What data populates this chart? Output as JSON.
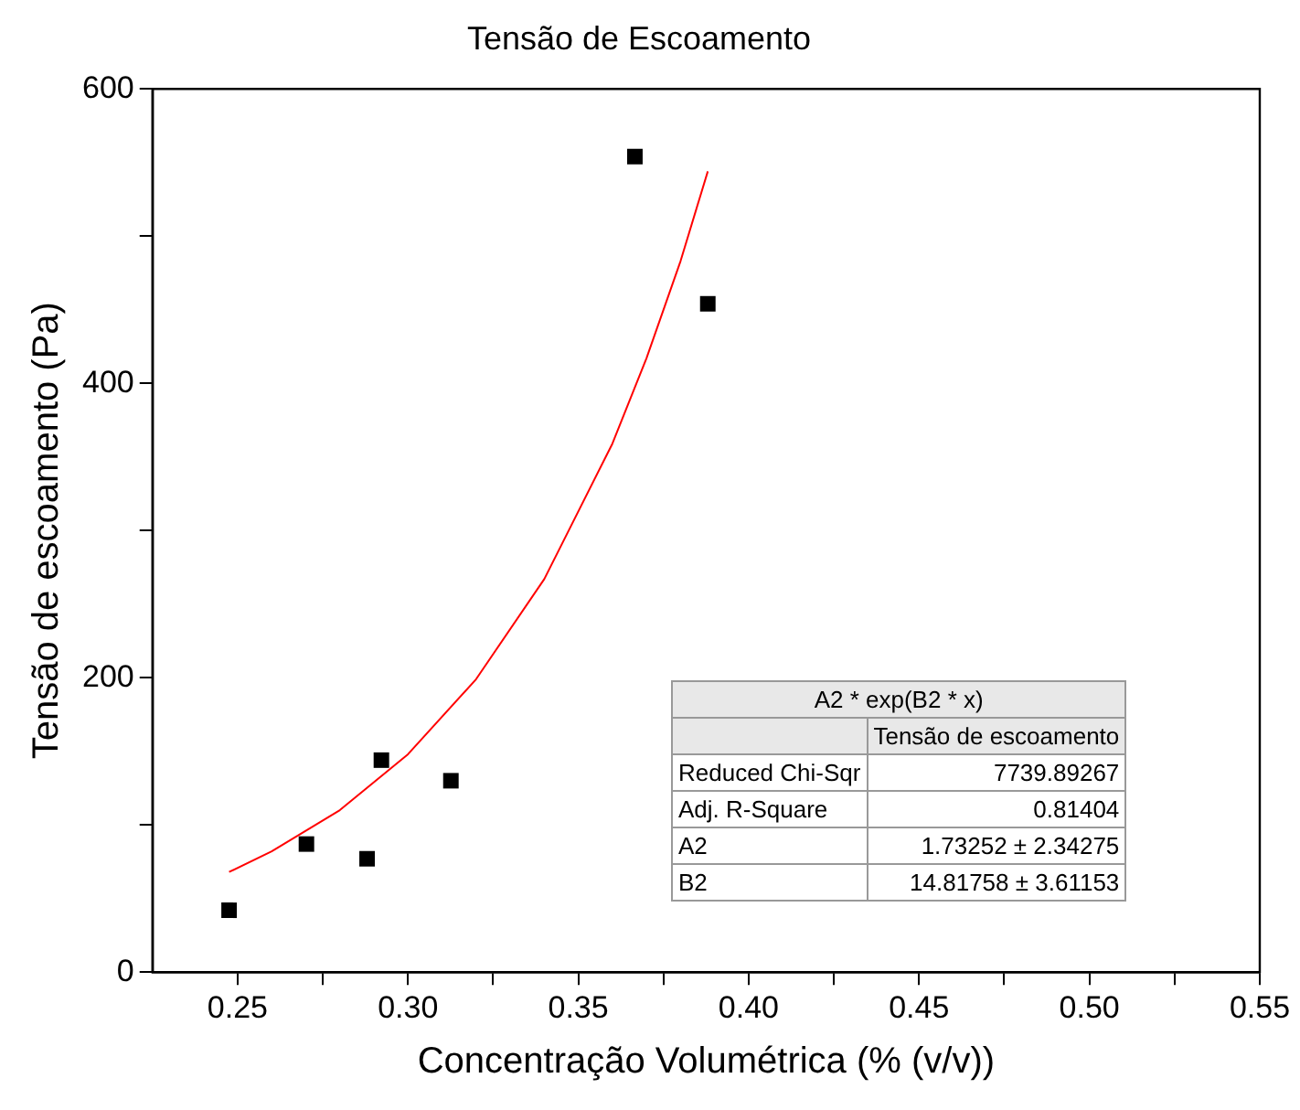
{
  "chart_data": {
    "type": "scatter",
    "title": "Tensão de Escoamento",
    "xlabel": "Concentração Volumétrica (% (v/v))",
    "ylabel": "Tensão de escoamento (Pa)",
    "x": [
      0.2475,
      0.2702,
      0.288,
      0.2922,
      0.3126,
      0.3666,
      0.388
    ],
    "series": [
      {
        "type": "scatter",
        "color": "#000000",
        "marker": "square",
        "values": [
          42,
          87,
          77,
          144,
          130,
          554,
          454
        ]
      },
      {
        "type": "line",
        "color": "#ff0000",
        "marker": "none",
        "x": [
          0.2475,
          0.26,
          0.28,
          0.3,
          0.32,
          0.34,
          0.36,
          0.37,
          0.38,
          0.388
        ],
        "values": [
          68,
          82,
          110,
          148,
          199,
          267,
          359,
          417,
          483,
          544
        ]
      }
    ],
    "xlim": [
      0.225,
      0.55
    ],
    "xticks": [
      0.25,
      {
        "value": 0.275,
        "label": null
      },
      "0.30",
      {
        "value": 0.325,
        "label": null
      },
      0.35,
      {
        "value": 0.375,
        "label": null
      },
      "0.40",
      {
        "value": 0.425,
        "label": null
      },
      0.45,
      {
        "value": 0.475,
        "label": null
      },
      "0.50",
      {
        "value": 0.525,
        "label": null
      },
      0.55
    ],
    "ylim": [
      0,
      600
    ],
    "yticks": [
      0,
      {
        "value": 100,
        "label": null
      },
      200,
      {
        "value": 300,
        "label": null
      },
      400,
      {
        "value": 500,
        "label": null
      },
      600
    ],
    "grid": false,
    "legend": false,
    "annotations": [
      "A2 * exp(B2 * x)",
      "Tensão de escoamento",
      "Reduced Chi-Sqr",
      "7739.89267",
      "Adj. R-Square",
      "0.81404",
      "A2",
      "1.73252 ± 2.34275",
      "B2",
      "14.81758 ± 3.61153"
    ]
  }
}
